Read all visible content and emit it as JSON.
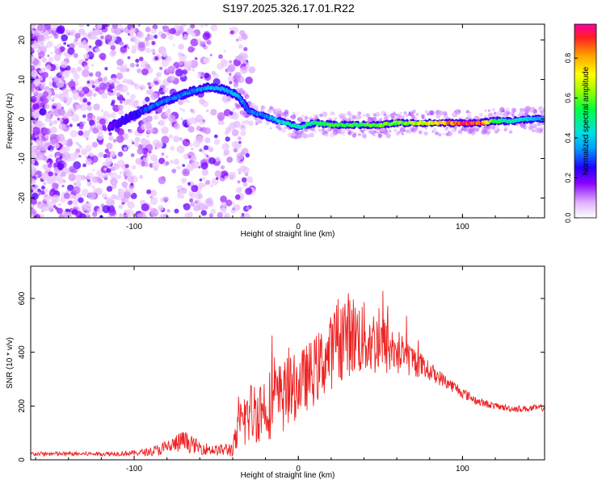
{
  "title": "S197.2025.326.17.01.R22",
  "colors": {
    "snr_line": "#ee2222",
    "axis": "#000000",
    "ridge_low": "#5500ee",
    "ridge_mid": "#00e0e0",
    "ridge_high": "#ff0033"
  },
  "chart_data": [
    {
      "id": "spectrogram",
      "type": "heatmap",
      "xlabel": "Height of straight line (km)",
      "ylabel": "Frequency (Hz)",
      "xlim": [
        -163,
        150
      ],
      "ylim": [
        -25,
        24
      ],
      "xticks": [
        -100,
        0,
        100
      ],
      "yticks": [
        20,
        10,
        0,
        -10,
        -20
      ],
      "colorbar": {
        "label": "Normalized spectral amplitude",
        "ticks": [
          0.0,
          0.2,
          0.4,
          0.6,
          0.8
        ],
        "range": [
          0,
          0.97
        ]
      },
      "ridge": {
        "x": [
          -115,
          -105,
          -95,
          -85,
          -75,
          -65,
          -55,
          -45,
          -37,
          -30,
          -22,
          -15,
          -8,
          0,
          10,
          20,
          30,
          40,
          50,
          60,
          70,
          80,
          90,
          100,
          110,
          120,
          130,
          140,
          150
        ],
        "freq": [
          -2,
          0,
          2,
          4,
          5.5,
          7,
          8,
          7.5,
          6,
          2,
          1,
          0,
          -1,
          -2,
          -1,
          -1.5,
          -1.5,
          -1.5,
          -1.5,
          -1,
          -1,
          -1,
          -1,
          -1,
          -1,
          -0.5,
          -0.5,
          0,
          0
        ],
        "amplitude": [
          0.2,
          0.25,
          0.3,
          0.35,
          0.35,
          0.35,
          0.4,
          0.4,
          0.4,
          0.35,
          0.35,
          0.4,
          0.5,
          0.5,
          0.55,
          0.6,
          0.6,
          0.6,
          0.65,
          0.65,
          0.7,
          0.75,
          0.85,
          0.95,
          0.97,
          0.6,
          0.5,
          0.45,
          0.4
        ]
      }
    },
    {
      "id": "snr",
      "type": "line",
      "xlabel": "Height of straight line (km)",
      "ylabel": "SNR (10 * v/v)",
      "xlim": [
        -163,
        150
      ],
      "ylim": [
        0,
        720
      ],
      "xticks": [
        -100,
        0,
        100
      ],
      "yticks": [
        0,
        200,
        400,
        600
      ],
      "series": [
        {
          "name": "SNR",
          "x": [
            -163,
            -140,
            -120,
            -100,
            -90,
            -80,
            -70,
            -60,
            -50,
            -40,
            -35,
            -30,
            -20,
            -10,
            0,
            10,
            20,
            25,
            30,
            40,
            50,
            60,
            70,
            80,
            90,
            100,
            110,
            120,
            130,
            140,
            150
          ],
          "y": [
            22,
            22,
            22,
            25,
            30,
            45,
            70,
            45,
            35,
            40,
            130,
            170,
            200,
            230,
            280,
            330,
            400,
            460,
            470,
            450,
            430,
            400,
            370,
            330,
            290,
            250,
            215,
            200,
            190,
            190,
            195
          ],
          "amplitude": [
            8,
            8,
            8,
            10,
            15,
            30,
            40,
            25,
            20,
            30,
            100,
            120,
            130,
            140,
            120,
            130,
            140,
            170,
            160,
            140,
            120,
            90,
            60,
            35,
            25,
            20,
            15,
            12,
            12,
            12,
            14
          ]
        }
      ]
    }
  ]
}
